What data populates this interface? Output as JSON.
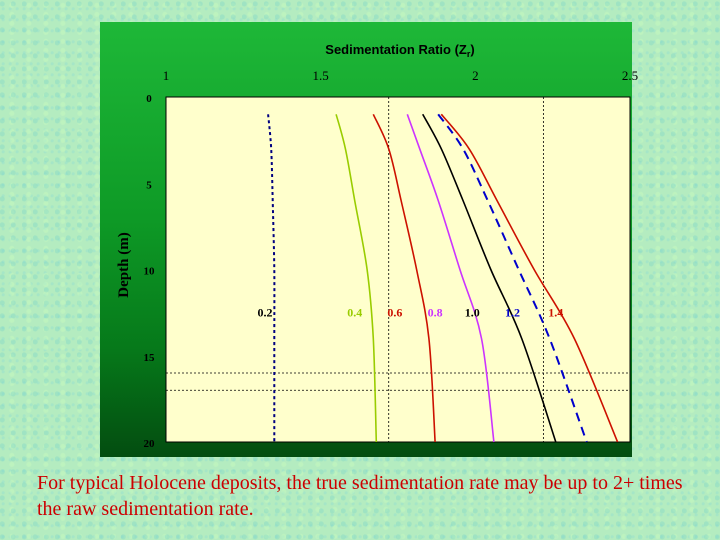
{
  "caption": "For typical Holocene deposits,  the true sedimentation rate may be up to 2+ times the raw sedimentation rate.",
  "chart_data": {
    "type": "line",
    "title": "Sedimentation Ratio (Z",
    "title_subscript": "r",
    "title_suffix": ")",
    "ylabel": "Depth (m)",
    "xlim": [
      1,
      2.5
    ],
    "ylim": [
      0,
      20
    ],
    "x_ticks": [
      "1",
      "1.5",
      "2",
      "2.5"
    ],
    "y_ticks": [
      "0",
      "5",
      "10",
      "15",
      "20"
    ],
    "x_axis_position": "top",
    "plot_background": "#ffffcc",
    "reference_lines": {
      "vertical_x": [
        1.72,
        2.22
      ],
      "horizontal_y": [
        16.0,
        17.0
      ]
    },
    "series": [
      {
        "name": "0.2",
        "color": "#000080",
        "style": "dashed",
        "points": [
          [
            1.33,
            1
          ],
          [
            1.34,
            3
          ],
          [
            1.345,
            6
          ],
          [
            1.35,
            10
          ],
          [
            1.35,
            14
          ],
          [
            1.35,
            20
          ]
        ]
      },
      {
        "name": "0.4",
        "color": "#99cc00",
        "style": "solid",
        "points": [
          [
            1.55,
            1
          ],
          [
            1.58,
            3
          ],
          [
            1.61,
            6
          ],
          [
            1.65,
            10
          ],
          [
            1.67,
            14
          ],
          [
            1.68,
            20
          ]
        ]
      },
      {
        "name": "0.6",
        "color": "#cc1100",
        "style": "solid",
        "points": [
          [
            1.67,
            1
          ],
          [
            1.72,
            3
          ],
          [
            1.76,
            6
          ],
          [
            1.81,
            10
          ],
          [
            1.85,
            14
          ],
          [
            1.87,
            20
          ]
        ]
      },
      {
        "name": "0.8",
        "color": "#cc33ff",
        "style": "solid",
        "points": [
          [
            1.78,
            1
          ],
          [
            1.82,
            3
          ],
          [
            1.88,
            6
          ],
          [
            1.95,
            10
          ],
          [
            2.02,
            14
          ],
          [
            2.06,
            20
          ]
        ]
      },
      {
        "name": "1.0",
        "color": "#000000",
        "style": "solid",
        "points": [
          [
            1.83,
            1
          ],
          [
            1.89,
            3
          ],
          [
            1.96,
            6
          ],
          [
            2.05,
            10
          ],
          [
            2.15,
            14
          ],
          [
            2.26,
            20
          ]
        ]
      },
      {
        "name": "1.2",
        "color": "#0000cc",
        "style": "dashed",
        "points": [
          [
            1.88,
            1
          ],
          [
            1.96,
            3
          ],
          [
            2.04,
            6
          ],
          [
            2.14,
            10
          ],
          [
            2.24,
            14
          ],
          [
            2.36,
            20
          ]
        ]
      },
      {
        "name": "1.4",
        "color": "#cc1100",
        "style": "solid",
        "points": [
          [
            1.89,
            1
          ],
          [
            1.98,
            3
          ],
          [
            2.07,
            6
          ],
          [
            2.19,
            10
          ],
          [
            2.32,
            14
          ],
          [
            2.46,
            20
          ]
        ]
      }
    ],
    "series_labels": [
      {
        "text": "0.2",
        "x": 1.32,
        "y": 12.5,
        "color": "#000000"
      },
      {
        "text": "0.4",
        "x": 1.61,
        "y": 12.5,
        "color": "#99cc00"
      },
      {
        "text": "0.6",
        "x": 1.74,
        "y": 12.5,
        "color": "#cc1100"
      },
      {
        "text": "0.8",
        "x": 1.87,
        "y": 12.5,
        "color": "#cc33ff"
      },
      {
        "text": "1.0",
        "x": 1.99,
        "y": 12.5,
        "color": "#000000"
      },
      {
        "text": "1.2",
        "x": 2.12,
        "y": 12.5,
        "color": "#0000cc"
      },
      {
        "text": "1.4",
        "x": 2.26,
        "y": 12.5,
        "color": "#cc1100"
      }
    ]
  }
}
